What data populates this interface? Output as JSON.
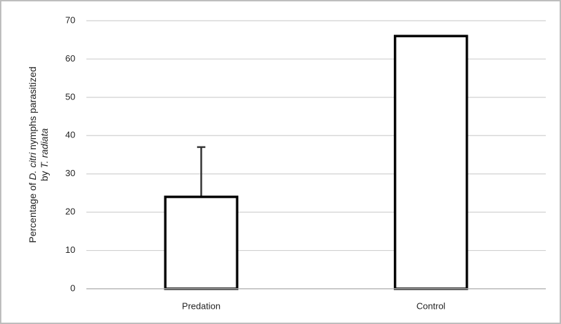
{
  "chart_data": {
    "type": "bar",
    "ylabel_lines": [
      [
        "Percentage of ",
        "D. citri",
        " nymphs parasitized"
      ],
      [
        "by ",
        "T. radiata"
      ]
    ],
    "categories": [
      "Predation",
      "Control"
    ],
    "values": [
      24,
      66
    ],
    "errors": [
      13,
      null
    ],
    "color": "#ffffff",
    "edgecolor": "#000000",
    "ylim": [
      0,
      70
    ],
    "yticks": [
      0,
      10,
      20,
      30,
      40,
      50,
      60,
      70
    ],
    "grid": true
  }
}
